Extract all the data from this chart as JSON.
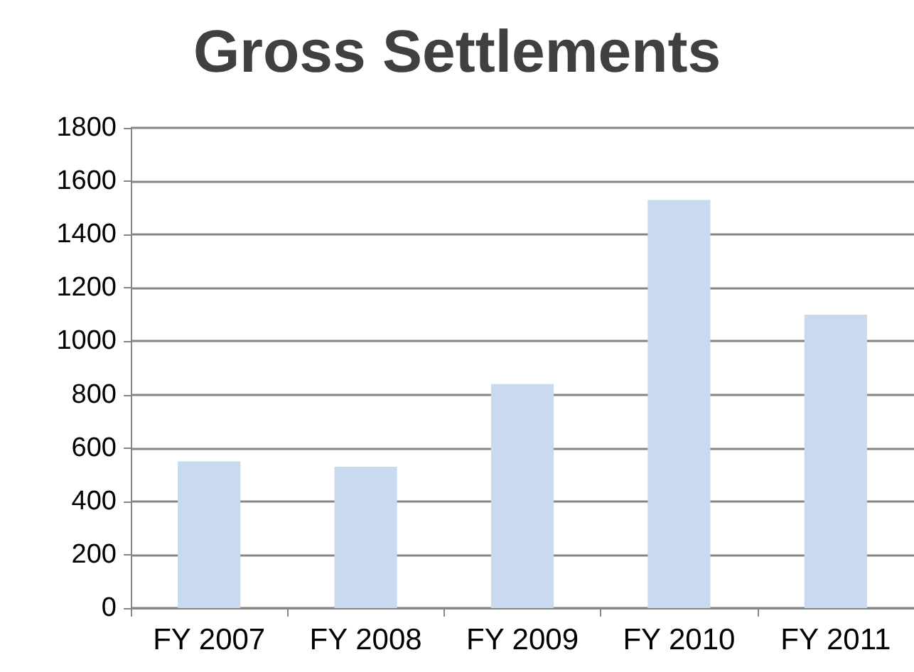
{
  "chart_data": {
    "type": "bar",
    "title": "Gross Settlements",
    "categories": [
      "FY 2007",
      "FY 2008",
      "FY 2009",
      "FY 2010",
      "FY 2011"
    ],
    "values": [
      550,
      530,
      840,
      1530,
      1100
    ],
    "color": "#c9d9ef",
    "ylim": [
      0,
      1800
    ],
    "yticks": [
      0,
      200,
      400,
      600,
      800,
      1000,
      1200,
      1400,
      1600,
      1800
    ],
    "grid": "y"
  }
}
